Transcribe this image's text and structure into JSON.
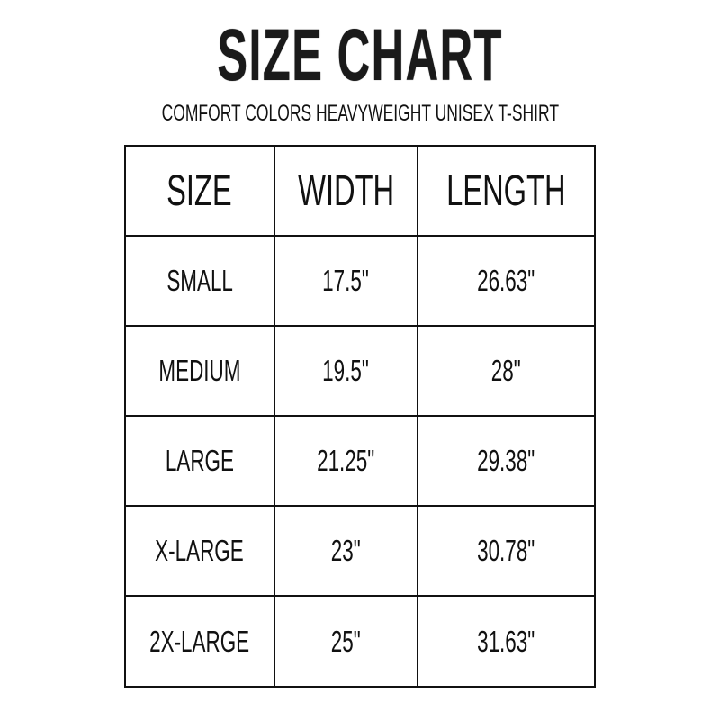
{
  "title": "SIZE CHART",
  "subtitle": "COMFORT COLORS HEAVYWEIGHT UNISEX T-SHIRT",
  "table": {
    "headers": [
      "SIZE",
      "WIDTH",
      "LENGTH"
    ],
    "rows": [
      [
        "SMALL",
        "17.5\"",
        "26.63\""
      ],
      [
        "MEDIUM",
        "19.5\"",
        "28\""
      ],
      [
        "LARGE",
        "21.25\"",
        "29.38\""
      ],
      [
        "X-LARGE",
        "23\"",
        "30.78\""
      ],
      [
        "2X-LARGE",
        "25\"",
        "31.63\""
      ]
    ]
  }
}
